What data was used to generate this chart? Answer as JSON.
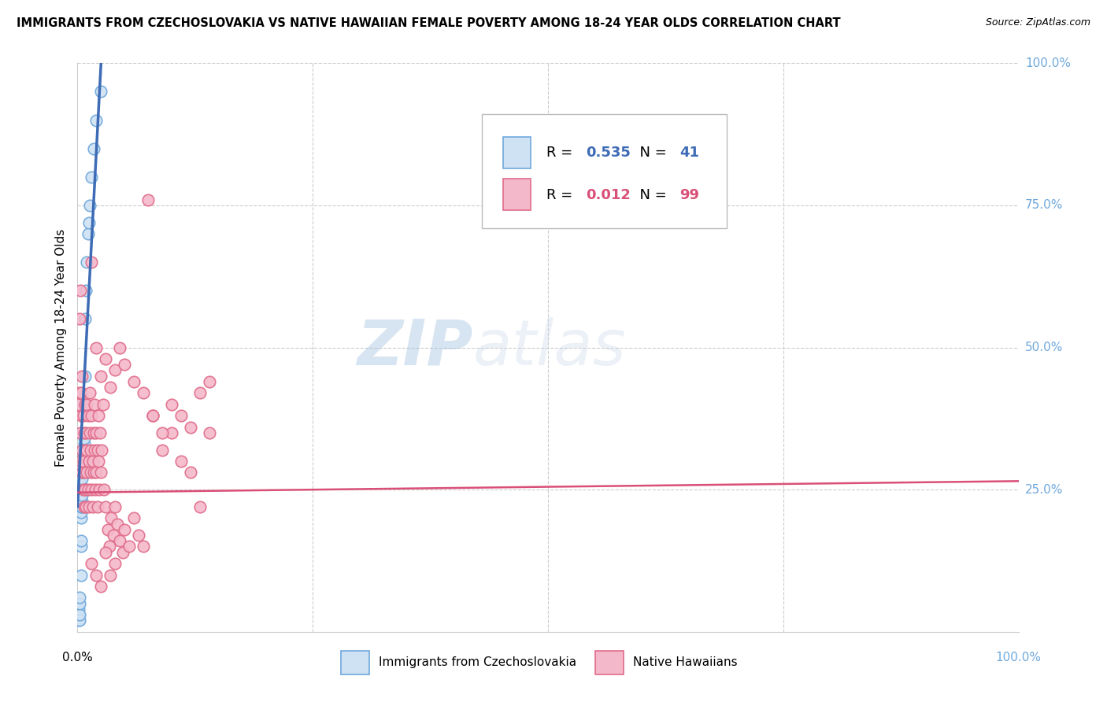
{
  "title": "IMMIGRANTS FROM CZECHOSLOVAKIA VS NATIVE HAWAIIAN FEMALE POVERTY AMONG 18-24 YEAR OLDS CORRELATION CHART",
  "source": "Source: ZipAtlas.com",
  "ylabel": "Female Poverty Among 18-24 Year Olds",
  "watermark_zip": "ZIP",
  "watermark_atlas": "atlas",
  "legend_blue_R": "0.535",
  "legend_blue_N": "41",
  "legend_pink_R": "0.012",
  "legend_pink_N": "99",
  "legend_label_blue": "Immigrants from Czechoslovakia",
  "legend_label_pink": "Native Hawaiians",
  "blue_color": "#6fa8dc",
  "blue_fill": "#cfe2f3",
  "pink_color": "#e06c8a",
  "pink_fill": "#f4b8cb",
  "trendline_blue": "#3d6bb5",
  "trendline_pink": "#d94f78",
  "right_label_color": "#6fa8dc",
  "grid_color": "#cccccc",
  "blue_scatter_x": [
    0.001,
    0.001,
    0.001,
    0.002,
    0.002,
    0.002,
    0.002,
    0.003,
    0.003,
    0.003,
    0.003,
    0.003,
    0.004,
    0.004,
    0.004,
    0.004,
    0.004,
    0.004,
    0.005,
    0.005,
    0.005,
    0.005,
    0.005,
    0.005,
    0.006,
    0.006,
    0.006,
    0.007,
    0.007,
    0.007,
    0.008,
    0.008,
    0.009,
    0.01,
    0.011,
    0.012,
    0.013,
    0.015,
    0.017,
    0.02,
    0.025
  ],
  "blue_scatter_y": [
    0.02,
    0.03,
    0.04,
    0.02,
    0.03,
    0.05,
    0.06,
    0.22,
    0.23,
    0.24,
    0.25,
    0.26,
    0.2,
    0.21,
    0.22,
    0.1,
    0.15,
    0.16,
    0.27,
    0.28,
    0.29,
    0.22,
    0.23,
    0.24,
    0.3,
    0.31,
    0.32,
    0.33,
    0.34,
    0.4,
    0.45,
    0.55,
    0.6,
    0.65,
    0.7,
    0.72,
    0.75,
    0.8,
    0.85,
    0.9,
    0.95
  ],
  "pink_scatter_x": [
    0.001,
    0.002,
    0.002,
    0.003,
    0.003,
    0.004,
    0.004,
    0.004,
    0.005,
    0.005,
    0.005,
    0.006,
    0.006,
    0.006,
    0.007,
    0.007,
    0.007,
    0.008,
    0.008,
    0.008,
    0.009,
    0.009,
    0.01,
    0.01,
    0.01,
    0.011,
    0.011,
    0.012,
    0.012,
    0.013,
    0.013,
    0.014,
    0.014,
    0.015,
    0.015,
    0.016,
    0.016,
    0.017,
    0.017,
    0.018,
    0.018,
    0.019,
    0.02,
    0.02,
    0.021,
    0.021,
    0.022,
    0.022,
    0.023,
    0.024,
    0.025,
    0.026,
    0.027,
    0.028,
    0.03,
    0.032,
    0.034,
    0.036,
    0.038,
    0.04,
    0.042,
    0.045,
    0.048,
    0.05,
    0.055,
    0.06,
    0.065,
    0.07,
    0.075,
    0.08,
    0.09,
    0.1,
    0.11,
    0.12,
    0.13,
    0.14,
    0.015,
    0.02,
    0.025,
    0.03,
    0.035,
    0.04,
    0.045,
    0.05,
    0.06,
    0.07,
    0.08,
    0.09,
    0.1,
    0.11,
    0.12,
    0.13,
    0.14,
    0.015,
    0.02,
    0.025,
    0.03,
    0.035,
    0.04
  ],
  "pink_scatter_y": [
    0.4,
    0.55,
    0.42,
    0.6,
    0.35,
    0.3,
    0.42,
    0.38,
    0.32,
    0.28,
    0.45,
    0.25,
    0.38,
    0.3,
    0.22,
    0.35,
    0.28,
    0.32,
    0.25,
    0.4,
    0.22,
    0.35,
    0.4,
    0.28,
    0.32,
    0.25,
    0.38,
    0.3,
    0.22,
    0.35,
    0.42,
    0.28,
    0.32,
    0.25,
    0.38,
    0.22,
    0.3,
    0.35,
    0.28,
    0.32,
    0.4,
    0.25,
    0.35,
    0.28,
    0.32,
    0.22,
    0.38,
    0.3,
    0.25,
    0.35,
    0.28,
    0.32,
    0.4,
    0.25,
    0.22,
    0.18,
    0.15,
    0.2,
    0.17,
    0.22,
    0.19,
    0.16,
    0.14,
    0.18,
    0.15,
    0.2,
    0.17,
    0.15,
    0.76,
    0.38,
    0.32,
    0.35,
    0.3,
    0.28,
    0.22,
    0.35,
    0.65,
    0.5,
    0.45,
    0.48,
    0.43,
    0.46,
    0.5,
    0.47,
    0.44,
    0.42,
    0.38,
    0.35,
    0.4,
    0.38,
    0.36,
    0.42,
    0.44,
    0.12,
    0.1,
    0.08,
    0.14,
    0.1,
    0.12
  ]
}
